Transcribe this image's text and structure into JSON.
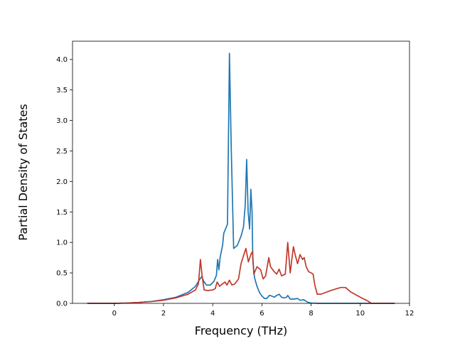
{
  "chart_data": {
    "type": "line",
    "title": "",
    "xlabel": "Frequency (THz)",
    "ylabel": "Partial Density of States",
    "xlim": [
      -1.7,
      12.0
    ],
    "ylim": [
      0.0,
      4.3
    ],
    "xticks": [
      0,
      2,
      4,
      6,
      8,
      10,
      12
    ],
    "yticks": [
      0.0,
      0.5,
      1.0,
      1.5,
      2.0,
      2.5,
      3.0,
      3.5,
      4.0
    ],
    "xtick_labels": [
      "0",
      "2",
      "4",
      "6",
      "8",
      "10",
      "12"
    ],
    "ytick_labels": [
      "0.0",
      "0.5",
      "1.0",
      "1.5",
      "2.0",
      "2.5",
      "3.0",
      "3.5",
      "4.0"
    ],
    "grid": false,
    "series": [
      {
        "color": "#1f77b4",
        "points": [
          [
            -1.1,
            0.0
          ],
          [
            0.0,
            0.0
          ],
          [
            0.5,
            0.005
          ],
          [
            1.0,
            0.015
          ],
          [
            1.5,
            0.03
          ],
          [
            2.0,
            0.06
          ],
          [
            2.5,
            0.1
          ],
          [
            3.0,
            0.18
          ],
          [
            3.3,
            0.28
          ],
          [
            3.45,
            0.38
          ],
          [
            3.55,
            0.44
          ],
          [
            3.65,
            0.35
          ],
          [
            3.75,
            0.3
          ],
          [
            3.9,
            0.3
          ],
          [
            4.05,
            0.36
          ],
          [
            4.15,
            0.46
          ],
          [
            4.2,
            0.72
          ],
          [
            4.25,
            0.55
          ],
          [
            4.3,
            0.75
          ],
          [
            4.4,
            0.95
          ],
          [
            4.45,
            1.15
          ],
          [
            4.6,
            1.3
          ],
          [
            4.68,
            4.1
          ],
          [
            4.75,
            2.6
          ],
          [
            4.85,
            0.9
          ],
          [
            5.0,
            0.95
          ],
          [
            5.15,
            1.1
          ],
          [
            5.25,
            1.25
          ],
          [
            5.32,
            1.6
          ],
          [
            5.38,
            2.36
          ],
          [
            5.44,
            1.5
          ],
          [
            5.5,
            1.22
          ],
          [
            5.55,
            1.87
          ],
          [
            5.6,
            1.5
          ],
          [
            5.63,
            0.7
          ],
          [
            5.7,
            0.42
          ],
          [
            5.8,
            0.28
          ],
          [
            5.9,
            0.18
          ],
          [
            6.0,
            0.12
          ],
          [
            6.1,
            0.08
          ],
          [
            6.2,
            0.08
          ],
          [
            6.3,
            0.13
          ],
          [
            6.4,
            0.12
          ],
          [
            6.5,
            0.1
          ],
          [
            6.6,
            0.13
          ],
          [
            6.7,
            0.15
          ],
          [
            6.8,
            0.1
          ],
          [
            6.9,
            0.09
          ],
          [
            7.0,
            0.1
          ],
          [
            7.05,
            0.13
          ],
          [
            7.15,
            0.07
          ],
          [
            7.3,
            0.07
          ],
          [
            7.45,
            0.08
          ],
          [
            7.55,
            0.05
          ],
          [
            7.7,
            0.06
          ],
          [
            7.85,
            0.02
          ],
          [
            8.0,
            0.005
          ],
          [
            8.3,
            0.0
          ],
          [
            11.4,
            0.0
          ]
        ]
      },
      {
        "color": "#c0392b",
        "points": [
          [
            -1.1,
            0.0
          ],
          [
            0.0,
            0.0
          ],
          [
            0.5,
            0.005
          ],
          [
            1.0,
            0.015
          ],
          [
            1.5,
            0.03
          ],
          [
            2.0,
            0.05
          ],
          [
            2.5,
            0.09
          ],
          [
            3.0,
            0.15
          ],
          [
            3.3,
            0.22
          ],
          [
            3.42,
            0.32
          ],
          [
            3.5,
            0.72
          ],
          [
            3.57,
            0.45
          ],
          [
            3.65,
            0.22
          ],
          [
            3.8,
            0.21
          ],
          [
            4.0,
            0.22
          ],
          [
            4.1,
            0.24
          ],
          [
            4.18,
            0.35
          ],
          [
            4.28,
            0.28
          ],
          [
            4.4,
            0.32
          ],
          [
            4.5,
            0.35
          ],
          [
            4.58,
            0.3
          ],
          [
            4.68,
            0.38
          ],
          [
            4.78,
            0.3
          ],
          [
            4.9,
            0.32
          ],
          [
            5.05,
            0.4
          ],
          [
            5.15,
            0.65
          ],
          [
            5.25,
            0.78
          ],
          [
            5.35,
            0.9
          ],
          [
            5.45,
            0.68
          ],
          [
            5.55,
            0.8
          ],
          [
            5.62,
            0.85
          ],
          [
            5.67,
            0.48
          ],
          [
            5.8,
            0.6
          ],
          [
            5.95,
            0.55
          ],
          [
            6.05,
            0.4
          ],
          [
            6.15,
            0.45
          ],
          [
            6.28,
            0.75
          ],
          [
            6.35,
            0.6
          ],
          [
            6.5,
            0.52
          ],
          [
            6.6,
            0.48
          ],
          [
            6.7,
            0.56
          ],
          [
            6.8,
            0.45
          ],
          [
            6.95,
            0.48
          ],
          [
            7.05,
            1.0
          ],
          [
            7.15,
            0.5
          ],
          [
            7.28,
            0.93
          ],
          [
            7.35,
            0.8
          ],
          [
            7.45,
            0.65
          ],
          [
            7.55,
            0.8
          ],
          [
            7.65,
            0.72
          ],
          [
            7.72,
            0.75
          ],
          [
            7.8,
            0.6
          ],
          [
            7.9,
            0.52
          ],
          [
            8.0,
            0.5
          ],
          [
            8.08,
            0.48
          ],
          [
            8.15,
            0.3
          ],
          [
            8.25,
            0.15
          ],
          [
            8.4,
            0.15
          ],
          [
            8.8,
            0.21
          ],
          [
            9.2,
            0.26
          ],
          [
            9.4,
            0.26
          ],
          [
            9.6,
            0.19
          ],
          [
            10.0,
            0.1
          ],
          [
            10.3,
            0.04
          ],
          [
            10.45,
            0.0
          ],
          [
            11.4,
            0.0
          ]
        ]
      }
    ]
  }
}
